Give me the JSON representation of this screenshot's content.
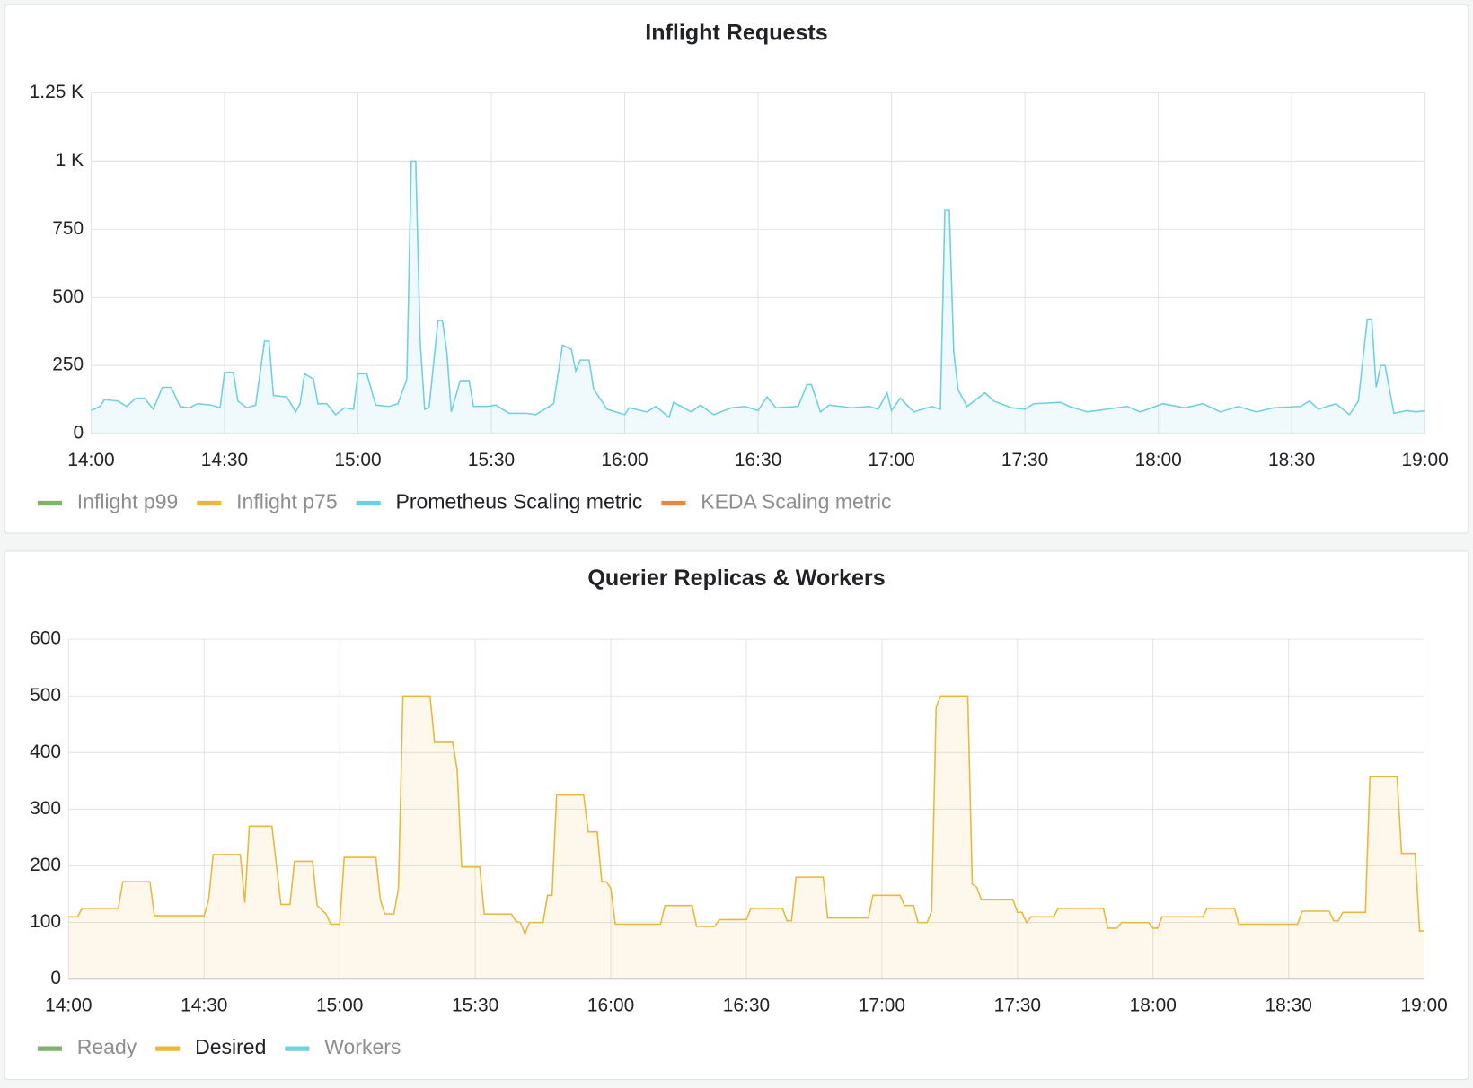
{
  "chart_data": [
    {
      "type": "line",
      "title": "Inflight Requests",
      "x": [
        "14:00",
        "14:02",
        "14:03",
        "14:06",
        "14:08",
        "14:10",
        "14:12",
        "14:14",
        "14:16",
        "14:18",
        "14:20",
        "14:22",
        "14:24",
        "14:27",
        "14:29",
        "14:30",
        "14:32",
        "14:33",
        "14:35",
        "14:37",
        "14:39",
        "14:40",
        "14:41",
        "14:44",
        "14:46",
        "14:47",
        "14:48",
        "14:50",
        "14:51",
        "14:53",
        "14:55",
        "14:57",
        "14:59",
        "15:00",
        "15:02",
        "15:04",
        "15:07",
        "15:09",
        "15:11",
        "15:12",
        "15:13",
        "15:14",
        "15:15",
        "15:16",
        "15:18",
        "15:19",
        "15:20",
        "15:21",
        "15:23",
        "15:25",
        "15:26",
        "15:29",
        "15:31",
        "15:34",
        "15:38",
        "15:40",
        "15:44",
        "15:46",
        "15:48",
        "15:49",
        "15:50",
        "15:52",
        "15:53",
        "15:56",
        "16:00",
        "16:01",
        "16:05",
        "16:07",
        "16:10",
        "16:11",
        "16:15",
        "16:17",
        "16:20",
        "16:24",
        "16:27",
        "16:30",
        "16:32",
        "16:34",
        "16:39",
        "16:41",
        "16:42",
        "16:44",
        "16:46",
        "16:51",
        "16:55",
        "16:57",
        "16:59",
        "17:00",
        "17:02",
        "17:05",
        "17:09",
        "17:11",
        "17:12",
        "17:13",
        "17:14",
        "17:15",
        "17:17",
        "17:21",
        "17:23",
        "17:27",
        "17:30",
        "17:32",
        "17:38",
        "17:40",
        "17:44",
        "17:53",
        "17:56",
        "18:01",
        "18:06",
        "18:10",
        "18:14",
        "18:18",
        "18:22",
        "18:26",
        "18:32",
        "18:34",
        "18:36",
        "18:40",
        "18:43",
        "18:45",
        "18:47",
        "18:48",
        "18:49",
        "18:50",
        "18:51",
        "18:53",
        "18:56",
        "18:58",
        "19:00"
      ],
      "series": [
        {
          "name": "Inflight p99",
          "color": "#7eb26d",
          "hidden": true
        },
        {
          "name": "Inflight p75",
          "color": "#eab839",
          "hidden": true
        },
        {
          "name": "Prometheus Scaling metric",
          "color": "#6ed0e0",
          "values": [
            85,
            100,
            125,
            120,
            100,
            130,
            130,
            90,
            170,
            170,
            100,
            95,
            110,
            105,
            95,
            225,
            225,
            120,
            95,
            105,
            340,
            340,
            140,
            135,
            80,
            110,
            220,
            200,
            110,
            110,
            70,
            95,
            90,
            220,
            220,
            105,
            100,
            110,
            200,
            1000,
            1000,
            340,
            90,
            95,
            415,
            415,
            300,
            80,
            195,
            195,
            100,
            100,
            105,
            75,
            75,
            70,
            110,
            325,
            310,
            230,
            270,
            270,
            165,
            90,
            70,
            95,
            80,
            100,
            60,
            115,
            80,
            105,
            70,
            95,
            100,
            85,
            135,
            95,
            100,
            180,
            180,
            80,
            105,
            95,
            100,
            90,
            150,
            85,
            130,
            80,
            100,
            90,
            820,
            820,
            300,
            160,
            100,
            150,
            120,
            95,
            90,
            110,
            115,
            100,
            80,
            100,
            80,
            110,
            95,
            110,
            80,
            100,
            80,
            95,
            100,
            120,
            90,
            110,
            70,
            120,
            420,
            420,
            170,
            250,
            250,
            75,
            85,
            80,
            85
          ]
        },
        {
          "name": "KEDA Scaling metric",
          "color": "#ef843c",
          "hidden": true
        }
      ],
      "xlim": [
        "14:00",
        "19:00"
      ],
      "xticks": [
        "14:00",
        "14:30",
        "15:00",
        "15:30",
        "16:00",
        "16:30",
        "17:00",
        "17:30",
        "18:00",
        "18:30",
        "19:00"
      ],
      "ylim": [
        0,
        1250
      ],
      "yticks": [
        0,
        250,
        500,
        750,
        {
          "value": 1000,
          "label": "1 K"
        },
        {
          "value": 1250,
          "label": "1.25 K"
        }
      ],
      "grid": true,
      "fill": true,
      "legend": "bottom"
    },
    {
      "type": "line",
      "title": "Querier Replicas & Workers",
      "x": [
        "14:00",
        "14:02",
        "14:03",
        "14:11",
        "14:12",
        "14:18",
        "14:19",
        "14:30",
        "14:31",
        "14:32",
        "14:38",
        "14:39",
        "14:40",
        "14:45",
        "14:47",
        "14:49",
        "14:50",
        "14:54",
        "14:55",
        "14:57",
        "14:58",
        "15:00",
        "15:01",
        "15:08",
        "15:09",
        "15:10",
        "15:12",
        "15:13",
        "15:14",
        "15:20",
        "15:21",
        "15:25",
        "15:26",
        "15:27",
        "15:31",
        "15:32",
        "15:38",
        "15:39",
        "15:40",
        "15:41",
        "15:42",
        "15:45",
        "15:46",
        "15:47",
        "15:48",
        "15:54",
        "15:55",
        "15:57",
        "15:58",
        "15:59",
        "16:00",
        "16:01",
        "16:11",
        "16:12",
        "16:18",
        "16:19",
        "16:23",
        "16:24",
        "16:30",
        "16:31",
        "16:38",
        "16:39",
        "16:40",
        "16:41",
        "16:47",
        "16:48",
        "16:57",
        "16:58",
        "17:04",
        "17:05",
        "17:07",
        "17:08",
        "17:10",
        "17:11",
        "17:12",
        "17:13",
        "17:19",
        "17:20",
        "17:21",
        "17:22",
        "17:29",
        "17:30",
        "17:31",
        "17:32",
        "17:33",
        "17:38",
        "17:39",
        "17:49",
        "17:50",
        "17:52",
        "17:53",
        "17:59",
        "18:00",
        "18:01",
        "18:02",
        "18:11",
        "18:12",
        "18:18",
        "18:19",
        "18:32",
        "18:33",
        "18:39",
        "18:40",
        "18:41",
        "18:42",
        "18:47",
        "18:48",
        "18:54",
        "18:55",
        "18:58",
        "18:59",
        "19:00"
      ],
      "series": [
        {
          "name": "Ready",
          "color": "#7eb26d",
          "hidden": true
        },
        {
          "name": "Desired",
          "color": "#eab839",
          "values": [
            110,
            110,
            125,
            125,
            172,
            172,
            112,
            112,
            140,
            220,
            220,
            135,
            270,
            270,
            132,
            132,
            208,
            208,
            130,
            115,
            97,
            97,
            215,
            215,
            140,
            115,
            115,
            160,
            500,
            500,
            418,
            418,
            370,
            198,
            198,
            115,
            115,
            102,
            100,
            80,
            100,
            100,
            148,
            148,
            325,
            325,
            260,
            260,
            172,
            172,
            160,
            97,
            97,
            130,
            130,
            93,
            93,
            105,
            105,
            125,
            125,
            103,
            103,
            180,
            180,
            108,
            108,
            148,
            148,
            130,
            130,
            100,
            100,
            120,
            480,
            500,
            500,
            168,
            162,
            140,
            140,
            118,
            118,
            100,
            110,
            110,
            125,
            125,
            90,
            90,
            100,
            100,
            90,
            90,
            110,
            110,
            125,
            125,
            97,
            97,
            120,
            120,
            103,
            103,
            118,
            118,
            358,
            358,
            222,
            222,
            85,
            85
          ]
        },
        {
          "name": "Workers",
          "color": "#6ed0e0",
          "hidden": true
        }
      ],
      "xlim": [
        "14:00",
        "19:00"
      ],
      "xticks": [
        "14:00",
        "14:30",
        "15:00",
        "15:30",
        "16:00",
        "16:30",
        "17:00",
        "17:30",
        "18:00",
        "18:30",
        "19:00"
      ],
      "ylim": [
        0,
        600
      ],
      "yticks": [
        0,
        100,
        200,
        300,
        400,
        500,
        600
      ],
      "grid": true,
      "fill": true,
      "legend": "bottom"
    }
  ]
}
